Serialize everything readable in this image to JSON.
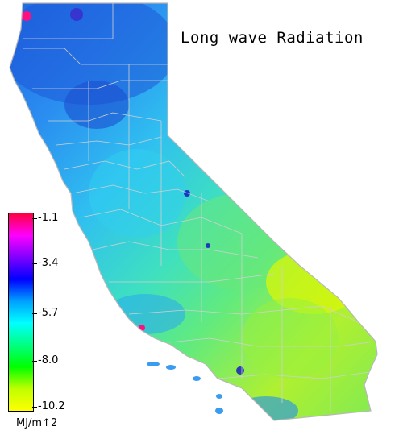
{
  "title": "Long wave Radiation",
  "legend": {
    "unit": "MJ/m↑2",
    "ticks": [
      "-1.1",
      "-3.4",
      "-5.7",
      "-8.0",
      "-10.2"
    ],
    "stops": [
      "#ff0040",
      "#ff00ff",
      "#8000ff",
      "#0000ff",
      "#00a0ff",
      "#00ffff",
      "#00ff80",
      "#00ff00",
      "#c0ff00",
      "#ffff00"
    ]
  },
  "colors": {
    "north": "#2a7fe8",
    "coast": "#38b8f0",
    "central": "#40d8e0",
    "sierra": "#3ad0c8",
    "east": "#5ee890",
    "desert": "#c8f020",
    "south": "#7ef060",
    "hot_spot": "#ff1080",
    "cold_spot": "#2020d0",
    "border": "#c8c8c8"
  }
}
